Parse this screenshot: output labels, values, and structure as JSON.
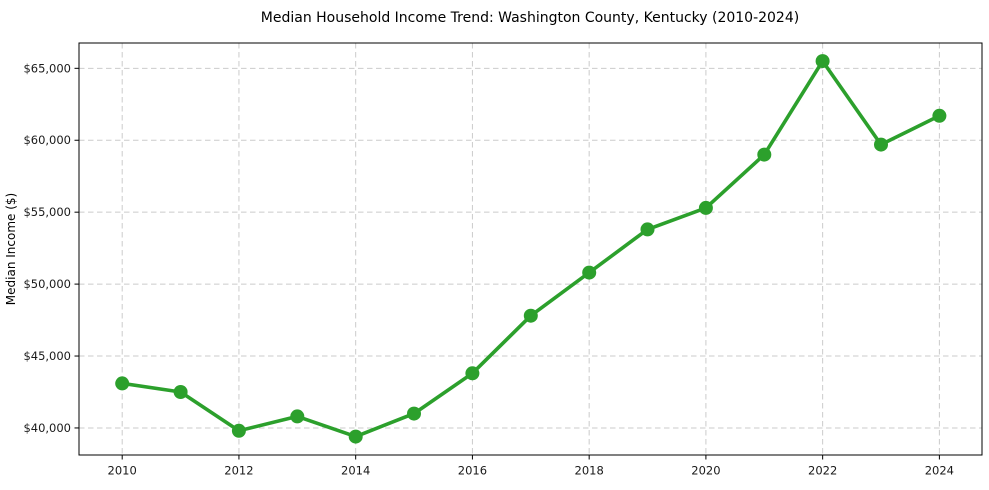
{
  "chart_data": {
    "type": "line",
    "title": "Median Household Income Trend: Washington County, Kentucky (2010-2024)",
    "xlabel": "",
    "ylabel": "Median Income ($)",
    "series_name": "median-household-income",
    "x": [
      2010,
      2011,
      2012,
      2013,
      2014,
      2015,
      2016,
      2017,
      2018,
      2019,
      2020,
      2021,
      2022,
      2023,
      2024
    ],
    "values": [
      43100,
      42500,
      39800,
      40800,
      39400,
      41000,
      43800,
      47800,
      50800,
      53800,
      55300,
      59000,
      65500,
      59700,
      61700
    ],
    "xlim": [
      2009.26,
      2024.73
    ],
    "ylim": [
      38120,
      66760
    ],
    "x_ticks": [
      {
        "value": 2010,
        "label": "2010"
      },
      {
        "value": 2012,
        "label": "2012"
      },
      {
        "value": 2014,
        "label": "2014"
      },
      {
        "value": 2016,
        "label": "2016"
      },
      {
        "value": 2018,
        "label": "2018"
      },
      {
        "value": 2020,
        "label": "2020"
      },
      {
        "value": 2022,
        "label": "2022"
      },
      {
        "value": 2024,
        "label": "2024"
      }
    ],
    "y_ticks": [
      {
        "value": 40000,
        "label": "$40,000"
      },
      {
        "value": 45000,
        "label": "$45,000"
      },
      {
        "value": 50000,
        "label": "$50,000"
      },
      {
        "value": 55000,
        "label": "$55,000"
      },
      {
        "value": 60000,
        "label": "$60,000"
      },
      {
        "value": 65000,
        "label": "$65,000"
      }
    ],
    "grid": true,
    "legend": "none",
    "line_color": "#2ca02c",
    "marker": "circle",
    "background_color": "#ffffff"
  }
}
